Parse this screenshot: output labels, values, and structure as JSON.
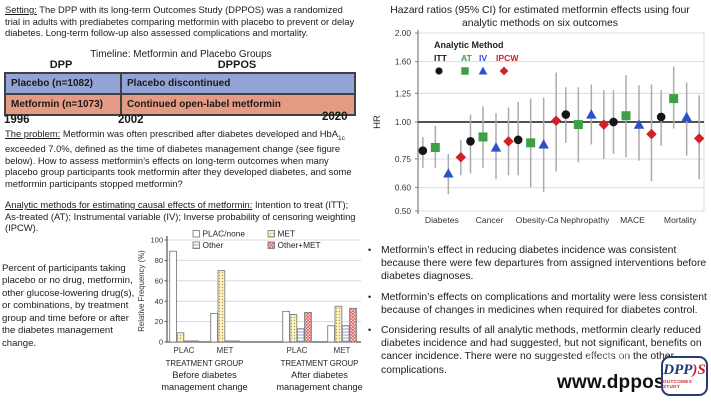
{
  "left": {
    "setting_lead": "Setting:",
    "setting_text": "  The DPP with its long-term Outcomes Study (DPPOS) was a randomized trial in adults with prediabetes comparing metformin with placebo to prevent or delay diabetes.  Long-term follow-up also assessed complications and mortality.",
    "timeline_title": "Timeline: Metformin and Placebo Groups",
    "table": {
      "col1_header": "DPP",
      "col2_header": "DPPOS",
      "rows": [
        {
          "col1": "Placebo (n=1082)",
          "col2": "Placebo discontinued",
          "color": "#94a3d6"
        },
        {
          "col1": "Metformin (n=1073)",
          "col2": "Continued open-label metformin",
          "color": "#e59a84"
        }
      ],
      "years": [
        "1996",
        "2002",
        "2020"
      ]
    },
    "problem_lead": "The problem:",
    "problem_text_a": " Metformin was often prescribed after diabetes developed and HbA",
    "problem_sub": "1c",
    "problem_text_b": " exceeded 7.0%, defined as the time of diabetes management change (see figure below). How to assess metformin’s effects on long-term outcomes when many placebo group participants took metformin after they developed diabetes, and some metformin participants stopped metformin?",
    "methods_lead": "Analytic methods for estimating causal effects of metformin:",
    "methods_text": " Intention to treat (ITT); As-treated (AT); Instrumental variable (IV); Inverse probability of censoring weighting (IPCW).",
    "figure_caption": "Percent of participants taking placebo or no drug, metformin, other glucose-lowering drug(s), or combinations, by treatment group and time before or after the diabetes management change."
  },
  "right": {
    "bullets": [
      "Metformin’s effect in reducing diabetes incidence was consistent because there were few departures from assigned interventions before diabetes diagnoses.",
      "Metformin’s effects on complications and mortality were less consistent because of changes in medicines when required for diabetes control.",
      "Considering results of all analytic methods, metformin clearly reduced diabetes incidence and had suggested, but not significant, benefits on cancer incidence.  There were no suggested effects on the other complications."
    ],
    "website": "www.dppos.org",
    "logo": {
      "main_blue": "DPP",
      "paren": ")",
      "main_red": "S",
      "sub": "OUTCOMES STUDY"
    },
    "watermark": {
      "cn_text": "医咖会",
      "en_text": "MEDIECO"
    }
  },
  "chart_data": [
    {
      "type": "scatter",
      "title": "Hazard ratios (95% CI) for estimated metformin effects using four analytic methods on six outcomes",
      "ylabel": "HR",
      "yscale": "log",
      "ylim": [
        0.5,
        2.0
      ],
      "yticks": [
        2.0,
        1.6,
        1.25,
        1.0,
        0.75,
        0.6,
        0.5
      ],
      "reference_line": 1.0,
      "legend_title": "Analytic Method",
      "legend_position": "top-left-inside",
      "categories": [
        "Diabetes",
        "Cancer",
        "Obesity-Ca",
        "Nephropathy",
        "MACE",
        "Mortality"
      ],
      "series": [
        {
          "name": "ITT",
          "marker": "circle",
          "color": "#151515",
          "values": [
            0.8,
            0.86,
            0.87,
            1.06,
            1.0,
            1.04
          ],
          "ci_low": [
            0.7,
            0.67,
            0.66,
            0.85,
            0.78,
            0.83
          ],
          "ci_high": [
            0.89,
            1.06,
            1.17,
            1.31,
            1.28,
            1.28
          ]
        },
        {
          "name": "AT",
          "marker": "square",
          "color": "#3ca046",
          "values": [
            0.82,
            0.89,
            0.85,
            0.98,
            1.05,
            1.2
          ],
          "ci_low": [
            0.7,
            0.7,
            0.6,
            0.73,
            0.76,
            0.95
          ],
          "ci_high": [
            0.97,
            1.13,
            1.2,
            1.31,
            1.44,
            1.54
          ]
        },
        {
          "name": "IV",
          "marker": "triangle",
          "color": "#2d50c8",
          "values": [
            0.67,
            0.82,
            0.84,
            1.06,
            0.98,
            1.04
          ],
          "ci_low": [
            0.57,
            0.64,
            0.58,
            0.84,
            0.74,
            0.77
          ],
          "ci_high": [
            0.78,
            1.07,
            1.21,
            1.34,
            1.33,
            1.36
          ]
        },
        {
          "name": "IPCW",
          "marker": "diamond",
          "color": "#d02028",
          "values": [
            0.76,
            0.86,
            1.01,
            0.98,
            0.91,
            0.88
          ],
          "ci_low": [
            0.66,
            0.66,
            0.68,
            0.75,
            0.63,
            0.64
          ],
          "ci_high": [
            0.87,
            1.12,
            1.47,
            1.28,
            1.34,
            1.23
          ]
        }
      ],
      "error_bar_color": "#ababab",
      "grid_color": "#dcdcdc"
    },
    {
      "type": "bar",
      "ylabel": "Relative Frequency (%)",
      "ylim": [
        0,
        100
      ],
      "yticks": [
        0,
        20,
        40,
        60,
        80,
        100
      ],
      "cluster_labels": [
        "PLAC",
        "MET",
        "PLAC",
        "MET"
      ],
      "panel_captions": [
        [
          "TREATMENT GROUP",
          "Before diabetes",
          "management change"
        ],
        [
          "TREATMENT GROUP",
          "After diabetes",
          "management change"
        ]
      ],
      "series": [
        {
          "name": "PLAC/none",
          "pattern": "none",
          "color": "#ffffff",
          "accent": "#808080",
          "values": [
            89,
            28,
            30,
            16
          ]
        },
        {
          "name": "MET",
          "pattern": "dots",
          "color": "#faf2cc",
          "accent": "#c2a136",
          "values": [
            9,
            70,
            27,
            35
          ]
        },
        {
          "name": "Other",
          "pattern": "hstripes",
          "color": "#ffffff",
          "accent": "#8fa3cf",
          "values": [
            1,
            1,
            13,
            16
          ]
        },
        {
          "name": "Other+MET",
          "pattern": "cross",
          "color": "#ffffff",
          "accent": "#d85050",
          "values": [
            1,
            1,
            29,
            33
          ]
        }
      ],
      "grid_color": "#d9d9d9"
    }
  ]
}
